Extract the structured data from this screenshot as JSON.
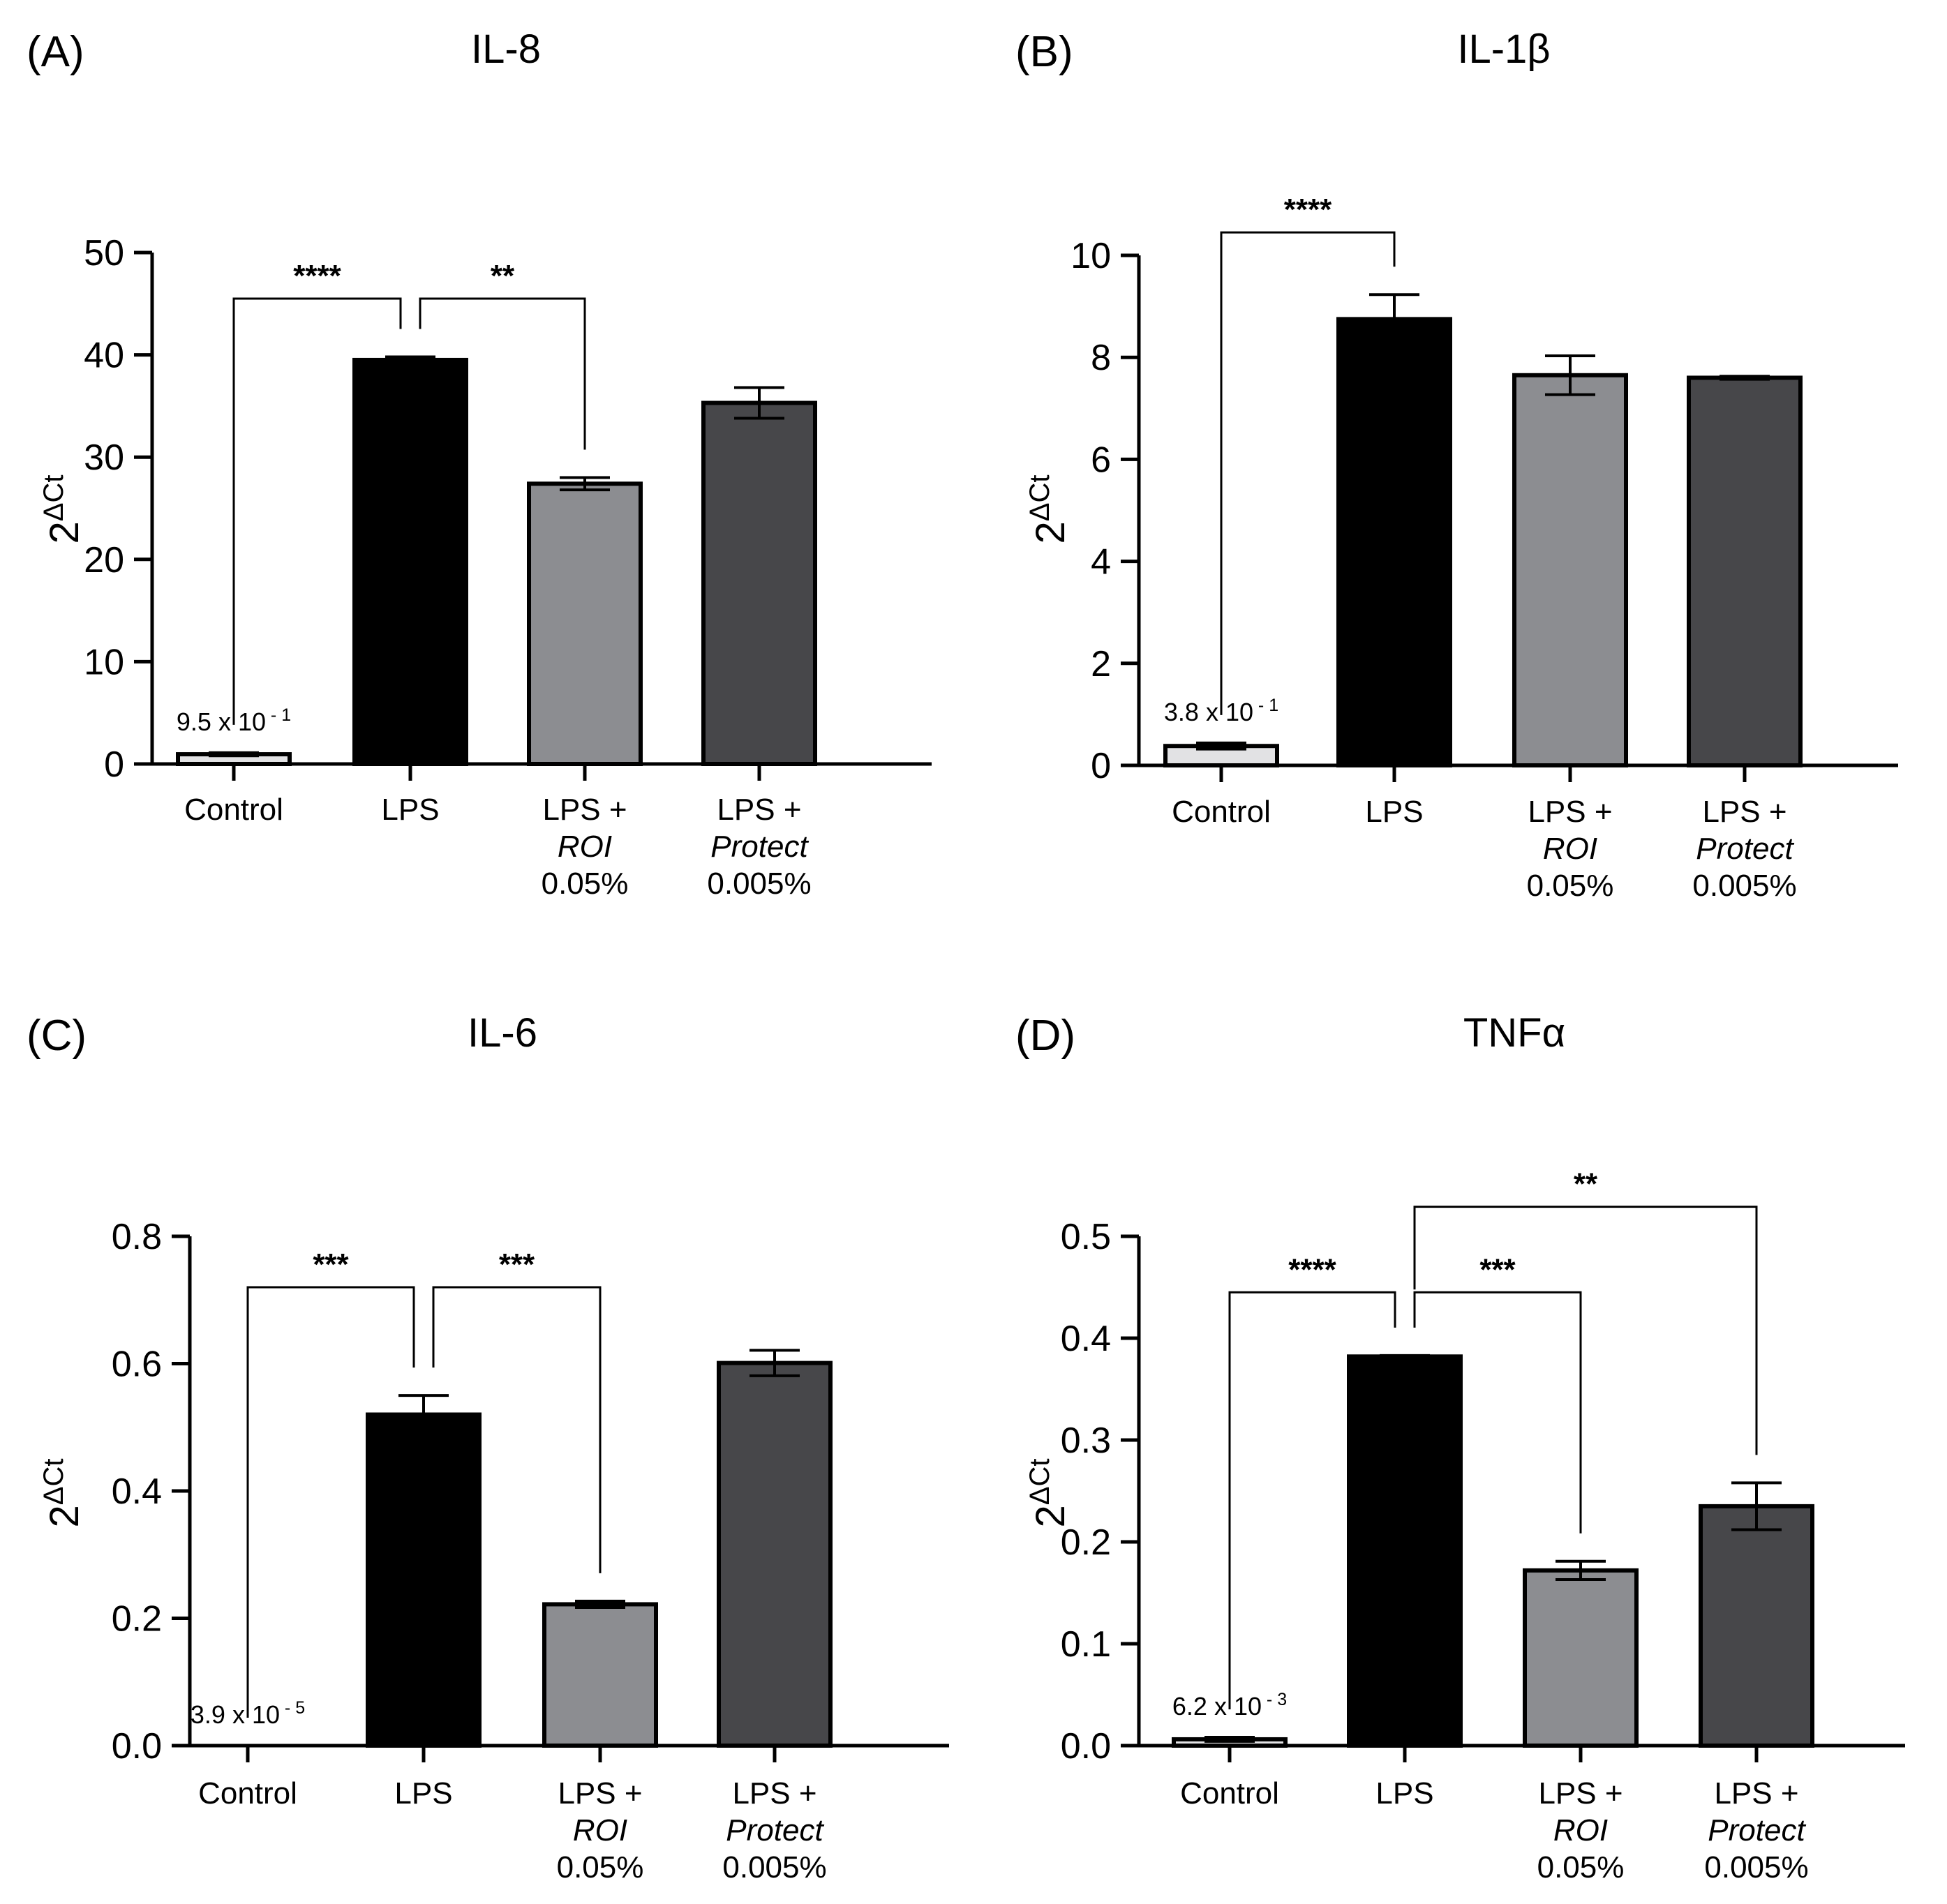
{
  "colors": {
    "Control": "#e2e2e4",
    "LPS": "#000000",
    "LPS + ROI 0.05%": "#8c8d91",
    "LPS + Protect 0.005%": "#47474a"
  },
  "chart_data": [
    {
      "type": "bar",
      "panel": "(A)",
      "title": "IL-8",
      "ylabel_base": "2",
      "ylabel_sup": "ΔCt",
      "ylim": [
        0,
        50
      ],
      "yticks": [
        0,
        10,
        20,
        30,
        40,
        50
      ],
      "categories": [
        {
          "key": "Control",
          "lines": [
            "Control"
          ]
        },
        {
          "key": "LPS",
          "lines": [
            "LPS"
          ]
        },
        {
          "key": "LPS + ROI 0.05%",
          "lines": [
            "LPS +",
            "ROI",
            "0.05%"
          ]
        },
        {
          "key": "LPS + Protect 0.005%",
          "lines": [
            "LPS +",
            "Protect",
            "0.005%"
          ]
        }
      ],
      "values": [
        0.95,
        39.5,
        27.4,
        35.3
      ],
      "errors": [
        0.15,
        0.3,
        0.6,
        1.5
      ],
      "annotation": {
        "index": 0,
        "text": "9.5 x 10",
        "exp": " - 1"
      },
      "significance": [
        {
          "from": 0,
          "to": 1,
          "label": "****",
          "level": 45.5
        },
        {
          "from": 1,
          "to": 2,
          "label": "**",
          "level": 45.5
        }
      ]
    },
    {
      "type": "bar",
      "panel": "(B)",
      "title": "IL-1β",
      "ylabel_base": "2",
      "ylabel_sup": "ΔCt",
      "ylim": [
        0,
        10
      ],
      "yticks": [
        0,
        2,
        4,
        6,
        8,
        10
      ],
      "categories": [
        {
          "key": "Control",
          "lines": [
            "Control"
          ]
        },
        {
          "key": "LPS",
          "lines": [
            "LPS"
          ]
        },
        {
          "key": "LPS + ROI 0.05%",
          "lines": [
            "LPS +",
            "ROI",
            "0.05%"
          ]
        },
        {
          "key": "LPS + Protect 0.005%",
          "lines": [
            "LPS +",
            "Protect",
            "0.005%"
          ]
        }
      ],
      "values": [
        0.38,
        8.75,
        7.65,
        7.6
      ],
      "errors": [
        0.06,
        0.48,
        0.38,
        0.03
      ],
      "annotation": {
        "index": 0,
        "text": "3.8 x 10",
        "exp": " - 1"
      },
      "significance": [
        {
          "from": 0,
          "to": 1,
          "label": "****",
          "level": 10.45
        }
      ]
    },
    {
      "type": "bar",
      "panel": "(C)",
      "title": "IL-6",
      "ylabel_base": "2",
      "ylabel_sup": "ΔCt",
      "ylim": [
        0,
        0.8
      ],
      "yticks": [
        "0.0",
        "0.2",
        "0.4",
        "0.6",
        "0.8"
      ],
      "categories": [
        {
          "key": "Control",
          "lines": [
            "Control"
          ]
        },
        {
          "key": "LPS",
          "lines": [
            "LPS"
          ]
        },
        {
          "key": "LPS + ROI 0.05%",
          "lines": [
            "LPS +",
            "ROI",
            "0.05%"
          ]
        },
        {
          "key": "LPS + Protect 0.005%",
          "lines": [
            "LPS +",
            "Protect",
            "0.005%"
          ]
        }
      ],
      "values": [
        3.9e-05,
        0.52,
        0.222,
        0.601
      ],
      "errors": [
        0,
        0.03,
        0.005,
        0.02
      ],
      "annotation": {
        "index": 0,
        "text": "3.9 x 10",
        "exp": " - 5"
      },
      "significance": [
        {
          "from": 0,
          "to": 1,
          "label": "***",
          "level": 0.72
        },
        {
          "from": 1,
          "to": 2,
          "label": "***",
          "level": 0.72
        }
      ]
    },
    {
      "type": "bar",
      "panel": "(D)",
      "title": "TNFα",
      "ylabel_base": "2",
      "ylabel_sup": "ΔCt",
      "ylim": [
        0,
        0.5
      ],
      "yticks": [
        "0.0",
        "0.1",
        "0.2",
        "0.3",
        "0.4",
        "0.5"
      ],
      "categories": [
        {
          "key": "Control",
          "lines": [
            "Control"
          ]
        },
        {
          "key": "LPS",
          "lines": [
            "LPS"
          ]
        },
        {
          "key": "LPS + ROI 0.05%",
          "lines": [
            "LPS +",
            "ROI",
            "0.05%"
          ]
        },
        {
          "key": "LPS + Protect 0.005%",
          "lines": [
            "LPS +",
            "Protect",
            "0.005%"
          ]
        }
      ],
      "values": [
        0.0062,
        0.382,
        0.172,
        0.235
      ],
      "errors": [
        0.002,
        0.001,
        0.009,
        0.023
      ],
      "annotation": {
        "index": 0,
        "text": "6.2 x 10",
        "exp": " - 3"
      },
      "significance": [
        {
          "from": 0,
          "to": 1,
          "label": "****",
          "level": 0.445
        },
        {
          "from": 1,
          "to": 2,
          "label": "***",
          "level": 0.445
        },
        {
          "from": 1,
          "to": 3,
          "label": "**",
          "level": 0.529
        }
      ]
    }
  ]
}
